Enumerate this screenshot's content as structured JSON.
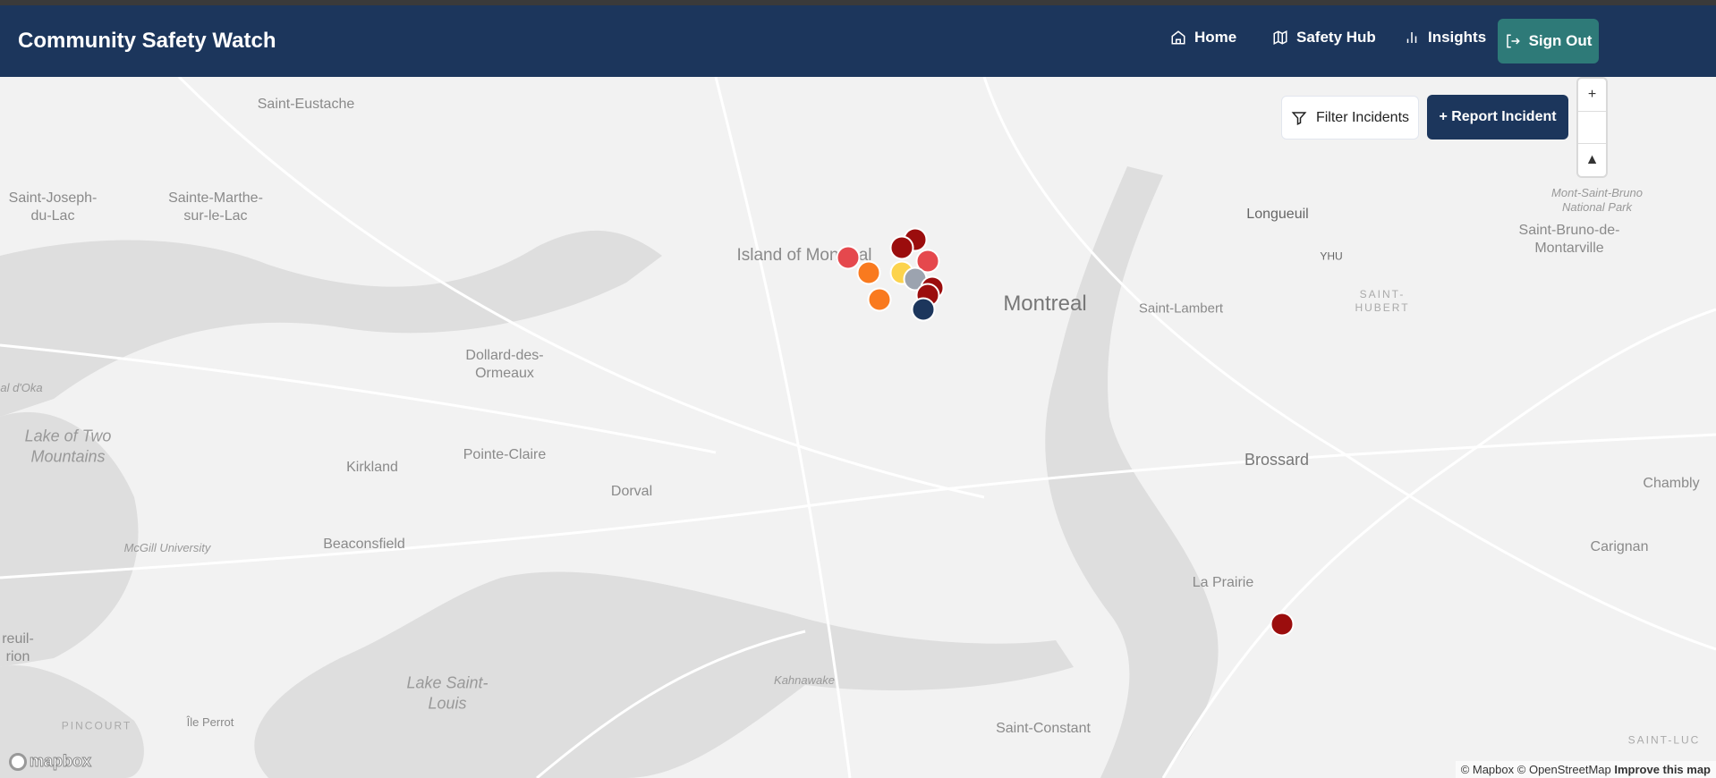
{
  "header": {
    "title": "Community Safety Watch",
    "nav": [
      {
        "label": "Home",
        "icon": "home-icon"
      },
      {
        "label": "Safety Hub",
        "icon": "map-icon"
      },
      {
        "label": "Insights",
        "icon": "bar-chart-icon"
      }
    ],
    "sign_out": "Sign Out"
  },
  "map": {
    "filter_label": "Filter Incidents",
    "report_label": "+ Report Incident",
    "zoom_in": "+",
    "compass": "▲",
    "labels": {
      "saint_eustache": "Saint-Eustache",
      "saint_joseph": "Saint-Joseph-du-Lac",
      "sainte_marthe": "Sainte-Marthe-sur-le-Lac",
      "island": "Island of Montreal",
      "montreal": "Montreal",
      "longueuil": "Longueuil",
      "yhu": "YHU",
      "saint_hubert": "SAINT-HUBERT",
      "saint_lambert": "Saint-Lambert",
      "mont_saint_bruno": "Mont-Saint-Bruno National Park",
      "saint_bruno": "Saint-Bruno-de-Montarville",
      "dollard": "Dollard-des-Ormeaux",
      "lake_two_mountains": "Lake of Two Mountains",
      "pointe_claire": "Pointe-Claire",
      "kirkland": "Kirkland",
      "dorval": "Dorval",
      "beaconsfield": "Beaconsfield",
      "mcgill": "McGill University",
      "brossard": "Brossard",
      "chambly": "Chambly",
      "carignan": "Carignan",
      "la_prairie": "La Prairie",
      "kahnawake": "Kahnawake",
      "lake_saint_louis": "Lake Saint-Louis",
      "saint_constant": "Saint-Constant",
      "pincourt": "PINCOURT",
      "ile_perrot": "Île Perrot",
      "oka": "al d'Oka",
      "vaudreuil": "reuil-rion",
      "saint_luc": "SAINT-LUC"
    },
    "markers": [
      {
        "color": "#e5484d"
      },
      {
        "color": "#f97a1f"
      },
      {
        "color": "#f97a1f"
      },
      {
        "color": "#9b0d0d"
      },
      {
        "color": "#9b0d0d"
      },
      {
        "color": "#e5484d"
      },
      {
        "color": "#fcd34d"
      },
      {
        "color": "#9ca3af"
      },
      {
        "color": "#9b0d0d"
      },
      {
        "color": "#9b0d0d"
      },
      {
        "color": "#1c365c"
      },
      {
        "color": "#9b0d0d"
      }
    ],
    "attribution": {
      "mapbox": "© Mapbox",
      "osm": "© OpenStreetMap",
      "improve": "Improve this map"
    },
    "logo": "mapbox"
  }
}
